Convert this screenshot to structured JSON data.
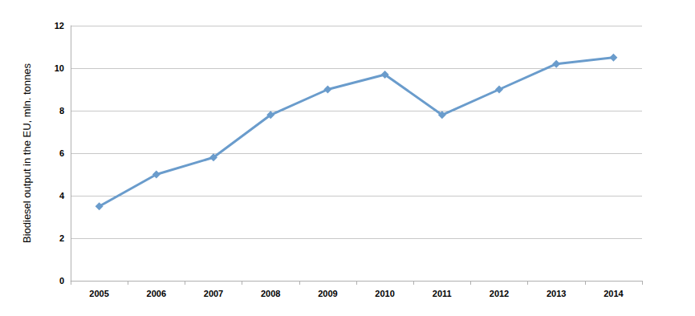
{
  "chart_data": {
    "type": "line",
    "y_label": "Biodiesel output in the EU, mln. tonnes",
    "categories": [
      "2005",
      "2006",
      "2007",
      "2008",
      "2009",
      "2010",
      "2011",
      "2012",
      "2013",
      "2014"
    ],
    "values": [
      3.5,
      5.0,
      5.8,
      7.8,
      9.0,
      9.7,
      7.8,
      9.0,
      10.2,
      10.5
    ],
    "color": "#6a9ccc",
    "marker": "diamond",
    "ylim": [
      0,
      12
    ],
    "yticks": [
      0,
      2,
      4,
      6,
      8,
      10,
      12
    ],
    "grid": true
  }
}
